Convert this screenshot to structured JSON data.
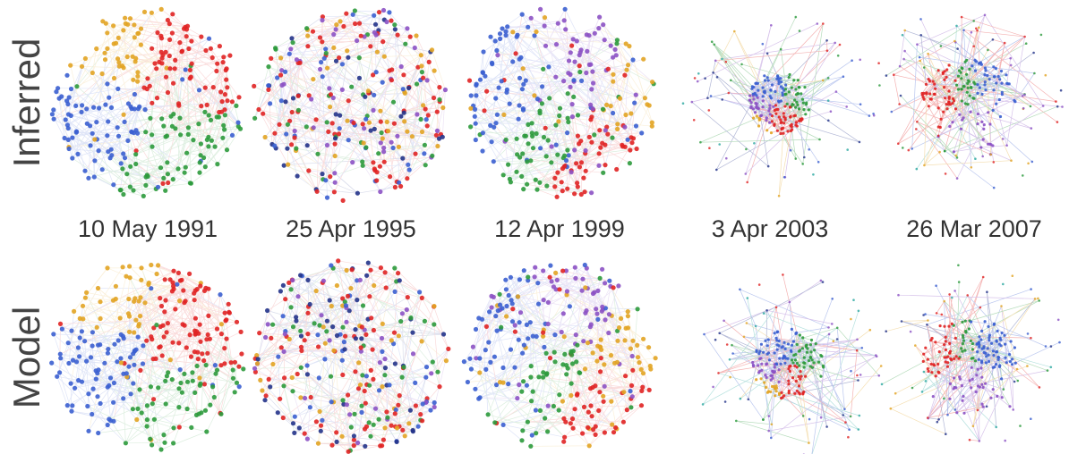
{
  "rows": [
    "Inferred",
    "Model"
  ],
  "dates": [
    "10 May 1991",
    "25 Apr 1995",
    "12 Apr 1999",
    "3 Apr 2003",
    "26 Mar 2007"
  ]
}
